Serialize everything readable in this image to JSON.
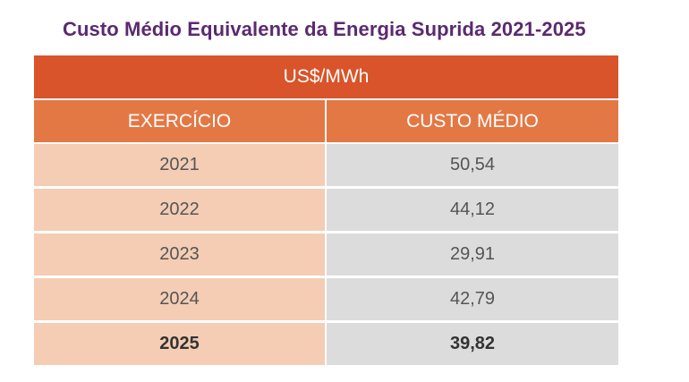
{
  "title": "Custo Médio Equivalente da Energia Suprida 2021-2025",
  "table": {
    "unit": "US$/MWh",
    "headers": [
      "EXERCÍCIO",
      "CUSTO MÉDIO"
    ],
    "rows": [
      {
        "year": "2021",
        "value": "50,54"
      },
      {
        "year": "2022",
        "value": "44,12"
      },
      {
        "year": "2023",
        "value": "29,91"
      },
      {
        "year": "2024",
        "value": "42,79"
      },
      {
        "year": "2025",
        "value": "39,82"
      }
    ]
  },
  "colors": {
    "title": "#5b2a6e",
    "unit_row": "#d9542a",
    "header_row": "#e37845",
    "year_cell": "#f4cdb4",
    "value_cell": "#dcdcdc"
  }
}
